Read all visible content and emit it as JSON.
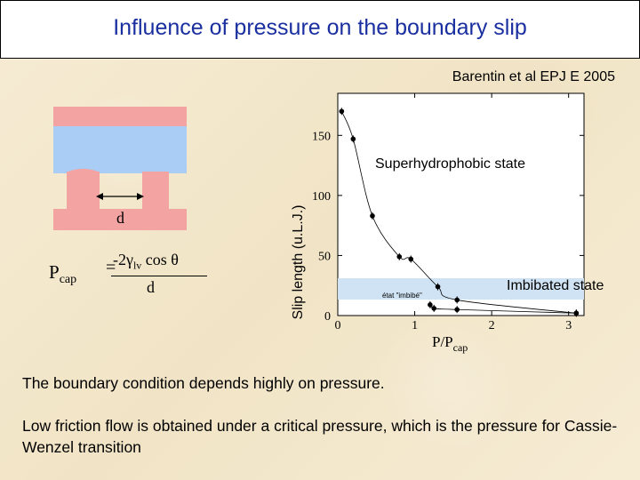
{
  "title": "Influence of pressure on the boundary slip",
  "reference": "Barentin et al EPJ E 2005",
  "diagram": {
    "gap_label": "d",
    "formula_lhs_main": "P",
    "formula_lhs_sub": "cap",
    "formula_equals": "=",
    "formula_num_prefix": "-2γ",
    "formula_num_sub": "lv",
    "formula_num_suffix": " cos θ",
    "formula_den": "d",
    "colors": {
      "pillar": "#f4a3a3",
      "liquid": "#a9cdf4"
    }
  },
  "chart_data": {
    "type": "scatter",
    "ylabel": "Slip length (u.L.J.)",
    "xlabel_main": "P/P",
    "xlabel_sub": "cap",
    "xticks": [
      "0",
      "1",
      "2",
      "3"
    ],
    "yticks": [
      "0",
      "50",
      "100",
      "150"
    ],
    "xlim": [
      0,
      3.2
    ],
    "ylim": [
      0,
      185
    ],
    "annotations": [
      "Superhydrophobic state",
      "Imbibated state",
      "état \"imbibé\""
    ],
    "series": [
      {
        "points": [
          [
            0.05,
            170
          ],
          [
            0.2,
            147
          ],
          [
            0.45,
            83
          ],
          [
            0.8,
            49
          ],
          [
            0.95,
            47
          ],
          [
            1.3,
            24
          ],
          [
            1.55,
            13
          ],
          [
            3.1,
            2
          ]
        ]
      },
      {
        "points": [
          [
            1.2,
            9
          ],
          [
            1.25,
            6
          ],
          [
            1.55,
            5
          ],
          [
            3.1,
            2
          ]
        ]
      }
    ]
  },
  "text": {
    "p1": "The boundary condition depends highly on pressure.",
    "p2": "Low friction flow is obtained under a critical pressure, which is the pressure for Cassie-Wenzel transition"
  }
}
